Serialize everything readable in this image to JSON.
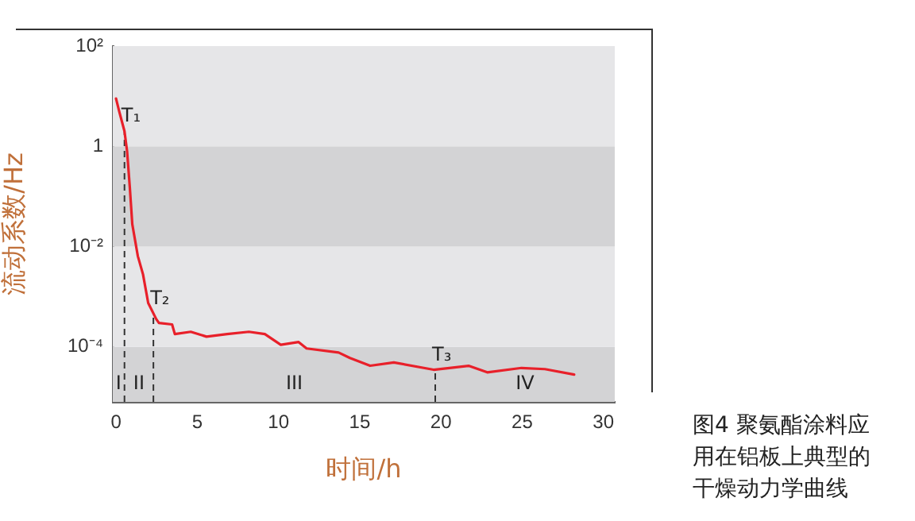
{
  "chart_data": {
    "type": "line",
    "xlabel": "时间/h",
    "ylabel": "流动系数/Hz",
    "log": "y",
    "grid": false,
    "legend": false,
    "marker": "none",
    "line_style": "solid",
    "xlim": [
      -0.2,
      30.7
    ],
    "xticks": [
      0,
      5,
      10,
      15,
      20,
      25,
      30
    ],
    "ylim": [
      8e-06,
      100
    ],
    "yticks": [
      {
        "value": 100,
        "label": "10²"
      },
      {
        "value": 1,
        "label": "1"
      },
      {
        "value": 0.01,
        "label": "10⁻²"
      },
      {
        "value": 0.0001,
        "label": "10⁻⁴"
      }
    ],
    "series": [
      {
        "color": "#e8202a",
        "x": [
          0,
          0.2,
          0.52,
          0.68,
          0.85,
          1.0,
          1.34,
          1.66,
          1.98,
          2.47,
          2.64,
          3.45,
          3.62,
          4.6,
          5.57,
          6.84,
          8.18,
          9.16,
          10.14,
          11.24,
          11.73,
          13.7,
          14.4,
          15.64,
          17.1,
          19.55,
          21.7,
          22.85,
          24.96,
          26.4,
          28.2
        ],
        "values": [
          9,
          4.9,
          2,
          0.8,
          0.15,
          0.028,
          0.0065,
          0.0028,
          0.00075,
          0.00036,
          0.0003,
          0.00028,
          0.00018,
          0.0002,
          0.00016,
          0.00018,
          0.0002,
          0.00018,
          0.00011,
          0.000125,
          9.3e-05,
          7.7e-05,
          6e-05,
          4.2e-05,
          4.9e-05,
          3.5e-05,
          4.2e-05,
          3.1e-05,
          3.8e-05,
          3.6e-05,
          2.8e-05
        ]
      }
    ],
    "bands": [
      {
        "axis": "y",
        "from": 8e-06,
        "to": 0.0001,
        "color": "#d3d3d5"
      },
      {
        "axis": "y",
        "from": 0.0001,
        "to": 0.01,
        "color": "#e6e6e8"
      },
      {
        "axis": "y",
        "from": 0.01,
        "to": 1,
        "color": "#d3d3d5"
      },
      {
        "axis": "y",
        "from": 1,
        "to": 100,
        "color": "#e6e6e8"
      }
    ],
    "ref_lines": [
      {
        "axis": "x",
        "value": 0.52,
        "label": "T₁",
        "line_style": "dashed",
        "color": "#333333"
      },
      {
        "axis": "x",
        "value": 2.3,
        "label": "T₂",
        "line_style": "dashed",
        "color": "#333333"
      },
      {
        "axis": "x",
        "value": 19.65,
        "label": "T₃",
        "line_style": "dashed",
        "color": "#333333"
      }
    ],
    "annotations": [
      "I",
      "II",
      "III",
      "IV",
      "图4  聚氨酯涂料应用在铝板上典型的干燥动力学曲线"
    ]
  }
}
